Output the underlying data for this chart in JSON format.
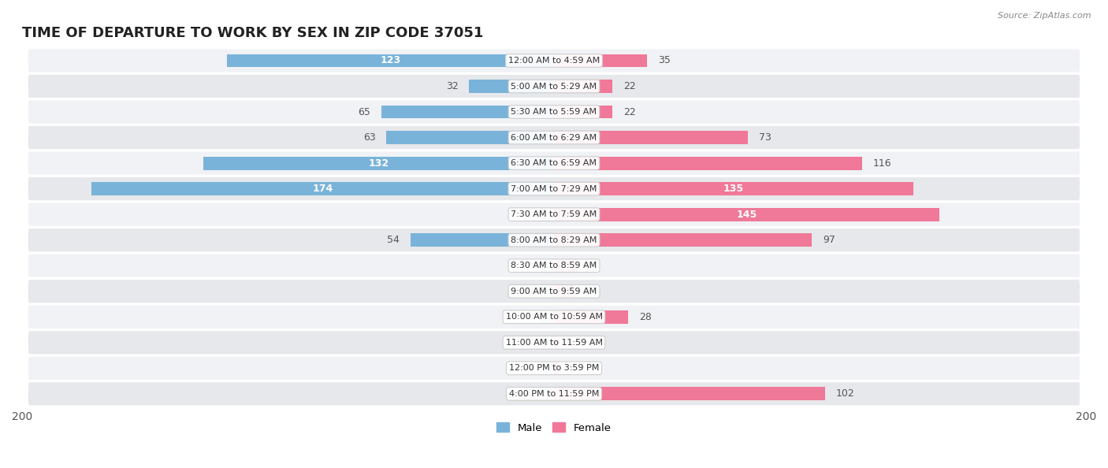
{
  "title": "TIME OF DEPARTURE TO WORK BY SEX IN ZIP CODE 37051",
  "source": "Source: ZipAtlas.com",
  "categories": [
    "12:00 AM to 4:59 AM",
    "5:00 AM to 5:29 AM",
    "5:30 AM to 5:59 AM",
    "6:00 AM to 6:29 AM",
    "6:30 AM to 6:59 AM",
    "7:00 AM to 7:29 AM",
    "7:30 AM to 7:59 AM",
    "8:00 AM to 8:29 AM",
    "8:30 AM to 8:59 AM",
    "9:00 AM to 9:59 AM",
    "10:00 AM to 10:59 AM",
    "11:00 AM to 11:59 AM",
    "12:00 PM to 3:59 PM",
    "4:00 PM to 11:59 PM"
  ],
  "male_values": [
    123,
    32,
    65,
    63,
    132,
    174,
    0,
    54,
    0,
    0,
    0,
    0,
    0,
    0
  ],
  "female_values": [
    35,
    22,
    22,
    73,
    116,
    135,
    145,
    97,
    9,
    7,
    28,
    0,
    2,
    102
  ],
  "male_color": "#7ab3d9",
  "female_color": "#f07898",
  "male_color_light": "#b8d4ea",
  "female_color_light": "#f8b8c8",
  "row_bg_odd": "#f0f2f5",
  "row_bg_even": "#e6e8eb",
  "xlim": 200,
  "title_fontsize": 13,
  "axis_fontsize": 10,
  "cat_fontsize": 8,
  "label_fontsize": 9,
  "bar_height": 0.52,
  "male_legend_color": "#7ab3d9",
  "female_legend_color": "#f07898"
}
